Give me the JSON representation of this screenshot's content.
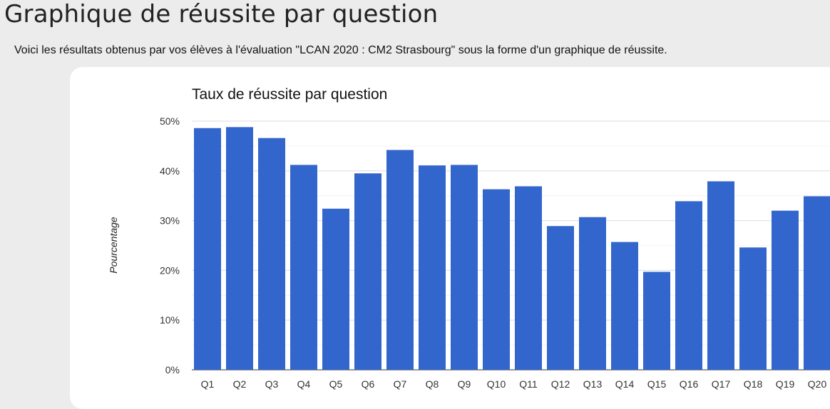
{
  "page": {
    "heading": "Graphique de réussite par question",
    "intro": "Voici les résultats obtenus par vos élèves à l'évaluation \"LCAN 2020 : CM2 Strasbourg\" sous la forme d'un graphique de réussite."
  },
  "colors": {
    "bar": "#3366cc",
    "gridline": "#dddddd",
    "baseline": "#333333"
  },
  "chart_data": {
    "type": "bar",
    "title": "Taux de réussite par question",
    "xlabel": "",
    "ylabel": "Pourcentage",
    "ylim": [
      0,
      50
    ],
    "yticks": [
      0,
      10,
      20,
      30,
      40,
      50
    ],
    "ytick_labels": [
      "0%",
      "10%",
      "20%",
      "30%",
      "40%",
      "50%"
    ],
    "grid": true,
    "categories": [
      "Q1",
      "Q2",
      "Q3",
      "Q4",
      "Q5",
      "Q6",
      "Q7",
      "Q8",
      "Q9",
      "Q10",
      "Q11",
      "Q12",
      "Q13",
      "Q14",
      "Q15",
      "Q16",
      "Q17",
      "Q18",
      "Q19",
      "Q20"
    ],
    "values": [
      48.6,
      48.8,
      46.6,
      41.2,
      32.4,
      39.5,
      44.2,
      41.1,
      41.2,
      36.3,
      36.9,
      28.9,
      30.7,
      25.7,
      19.7,
      33.9,
      37.9,
      24.6,
      32.0,
      34.9
    ]
  }
}
